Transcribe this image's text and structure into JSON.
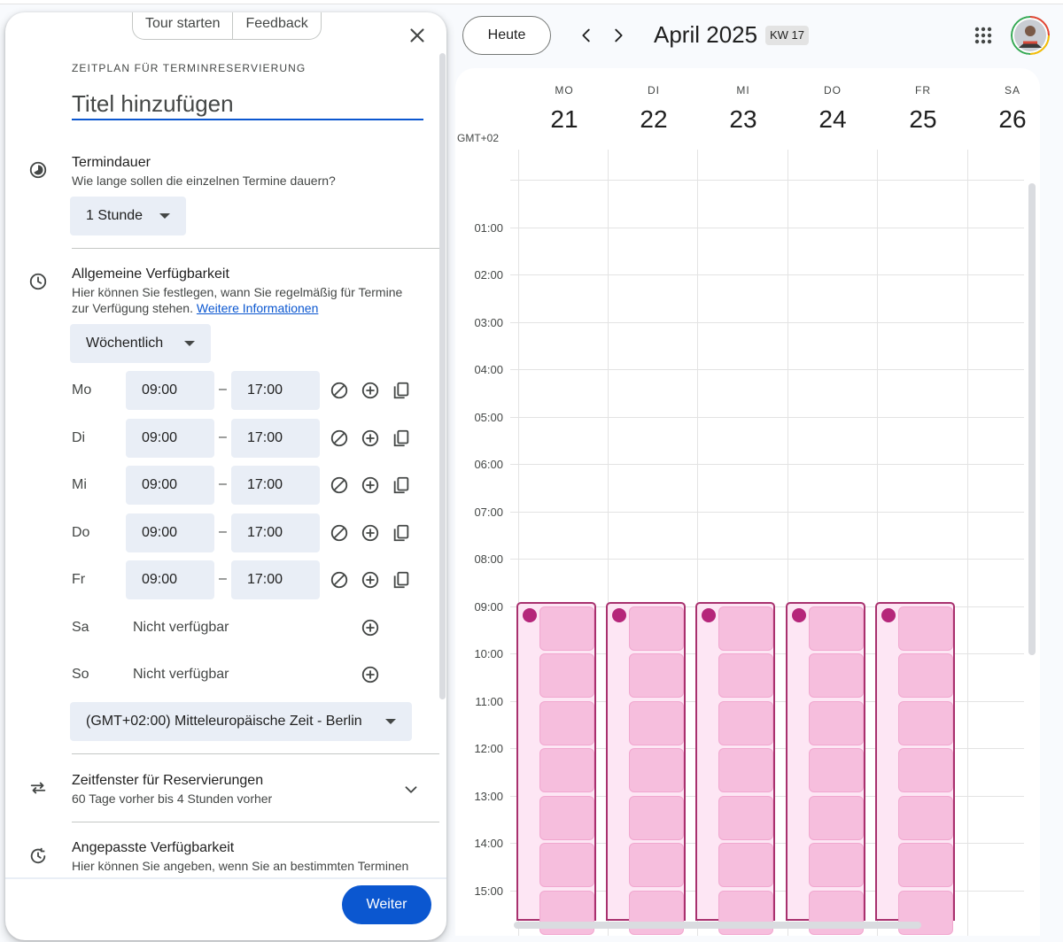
{
  "panel": {
    "tour": "Tour starten",
    "feedback": "Feedback",
    "overline": "ZEITPLAN FÜR TERMINRESERVIERUNG",
    "title_placeholder": "Titel hinzufügen",
    "duration": {
      "title": "Termindauer",
      "desc": "Wie lange sollen die einzelnen Termine dauern?",
      "value": "1 Stunde"
    },
    "availability": {
      "title": "Allgemeine Verfügbarkeit",
      "desc1": "Hier können Sie festlegen, wann Sie regelmäßig für Termine",
      "desc2": "zur Verfügung stehen.",
      "link": "Weitere Informationen",
      "repeat": "Wöchentlich",
      "dash": "–",
      "days": [
        {
          "label": "Mo",
          "start": "09:00",
          "end": "17:00"
        },
        {
          "label": "Di",
          "start": "09:00",
          "end": "17:00"
        },
        {
          "label": "Mi",
          "start": "09:00",
          "end": "17:00"
        },
        {
          "label": "Do",
          "start": "09:00",
          "end": "17:00"
        },
        {
          "label": "Fr",
          "start": "09:00",
          "end": "17:00"
        },
        {
          "label": "Sa",
          "na": "Nicht verfügbar"
        },
        {
          "label": "So",
          "na": "Nicht verfügbar"
        }
      ],
      "timezone": "(GMT+02:00) Mitteleuropäische Zeit - Berlin"
    },
    "window": {
      "title": "Zeitfenster für Reservierungen",
      "desc": "60 Tage vorher bis 4 Stunden vorher"
    },
    "custom": {
      "title": "Angepasste Verfügbarkeit",
      "desc": "Hier können Sie angeben, wenn Sie an bestimmten Terminen"
    },
    "next": "Weiter"
  },
  "calendar": {
    "today": "Heute",
    "month": "April 2025",
    "week": "KW 17",
    "tz": "GMT+02",
    "days": [
      {
        "dow": "MO",
        "num": "21"
      },
      {
        "dow": "DI",
        "num": "22"
      },
      {
        "dow": "MI",
        "num": "23"
      },
      {
        "dow": "DO",
        "num": "24"
      },
      {
        "dow": "FR",
        "num": "25"
      },
      {
        "dow": "SA",
        "num": "26"
      }
    ],
    "hours": [
      "01:00",
      "02:00",
      "03:00",
      "04:00",
      "05:00",
      "06:00",
      "07:00",
      "08:00",
      "09:00",
      "10:00",
      "11:00",
      "12:00",
      "13:00",
      "14:00",
      "15:00"
    ],
    "accent": "#a8316e",
    "slot_color": "#f6bedd"
  }
}
